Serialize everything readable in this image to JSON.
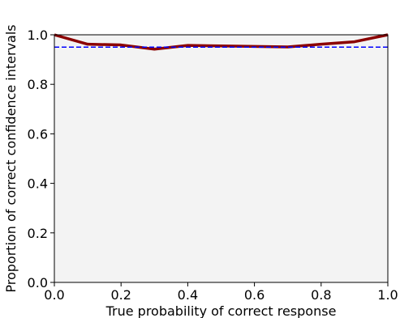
{
  "chart_data": {
    "type": "line",
    "title": "",
    "xlabel": "True probability of correct response",
    "ylabel": "Proportion of correct confidence intervals",
    "xlim": [
      0.0,
      1.0
    ],
    "ylim": [
      0.0,
      1.0
    ],
    "x_ticks": [
      "0.0",
      "0.2",
      "0.4",
      "0.6",
      "0.8",
      "1.0"
    ],
    "y_ticks": [
      "0.0",
      "0.2",
      "0.4",
      "0.6",
      "0.8",
      "1.0"
    ],
    "grid": false,
    "legend": "none",
    "plot_background": "#f3f3f3",
    "series": [
      {
        "style": "solid",
        "color": "#8b0000",
        "x": [
          0.0,
          0.1,
          0.2,
          0.3,
          0.4,
          0.5,
          0.6,
          0.7,
          0.8,
          0.9,
          1.0
        ],
        "y": [
          1.0,
          0.962,
          0.959,
          0.942,
          0.957,
          0.955,
          0.953,
          0.951,
          0.962,
          0.972,
          1.0
        ]
      },
      {
        "style": "dashed",
        "color": "#0000ff",
        "x": [
          0.0,
          1.0
        ],
        "y": [
          0.95,
          0.95
        ]
      }
    ]
  }
}
